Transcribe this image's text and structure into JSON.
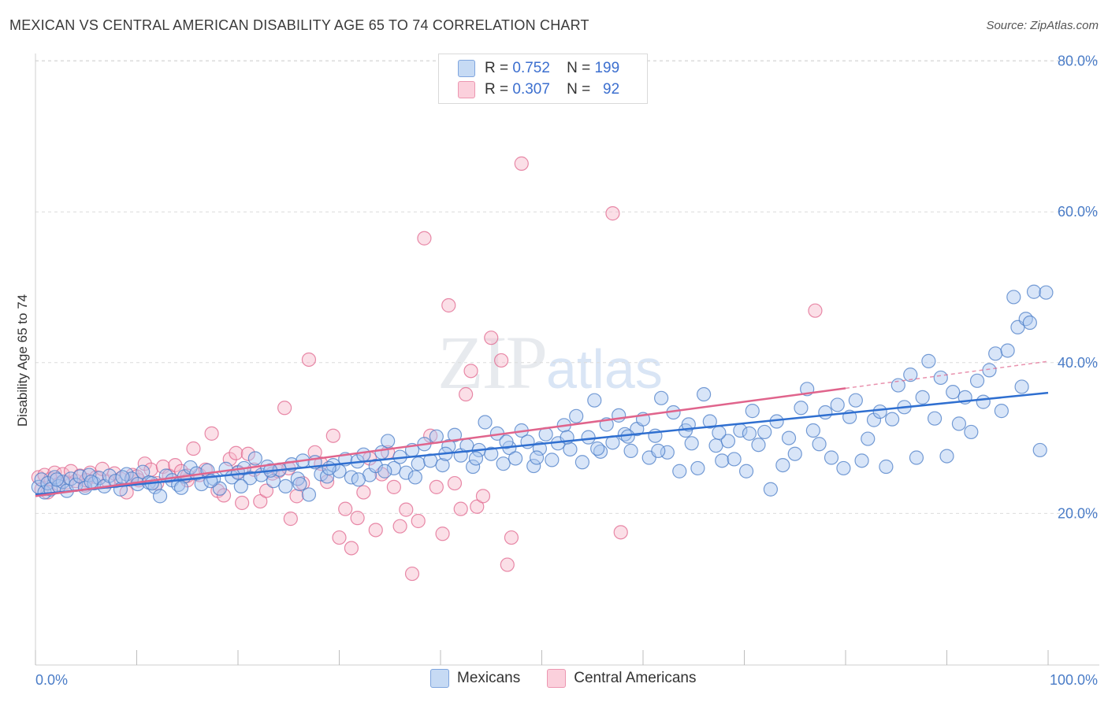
{
  "title": "MEXICAN VS CENTRAL AMERICAN DISABILITY AGE 65 TO 74 CORRELATION CHART",
  "source": "Source: ZipAtlas.com",
  "watermark": {
    "zip": "ZIP",
    "atlas": "atlas"
  },
  "legend": {
    "rows": [
      {
        "r_label": "R =",
        "r_value": "0.752",
        "n_label": "N =",
        "n_value": "199",
        "color": "#a9c6ef"
      },
      {
        "r_label": "R =",
        "r_value": "0.307",
        "n_label": "N =",
        "n_value": "92",
        "color": "#f6b8ca"
      }
    ]
  },
  "chart_data": {
    "type": "scatter",
    "title": "MEXICAN VS CENTRAL AMERICAN DISABILITY AGE 65 TO 74 CORRELATION CHART",
    "xlabel": "",
    "ylabel": "Disability Age 65 to 74",
    "xlim": [
      0,
      100
    ],
    "ylim": [
      0,
      82
    ],
    "x_tick_labels": [
      "0.0%",
      "100.0%"
    ],
    "y_ticks": [
      20,
      40,
      60,
      80
    ],
    "y_tick_labels": [
      "20.0%",
      "40.0%",
      "60.0%",
      "80.0%"
    ],
    "grid": "horizontal dashed",
    "legend_position": "top-center and bottom",
    "series": [
      {
        "name": "Mexicans",
        "color": "#4a7cc7",
        "fill": "#a9c6ef",
        "trend": {
          "x": [
            0,
            100
          ],
          "y": [
            22.5,
            36.0
          ]
        },
        "points": [
          [
            0.3,
            23.5
          ],
          [
            0.6,
            24.5
          ],
          [
            0.9,
            22.8
          ],
          [
            1.2,
            24.0
          ],
          [
            1.5,
            23.2
          ],
          [
            1.9,
            24.8
          ],
          [
            2.3,
            23.6
          ],
          [
            2.7,
            24.2
          ],
          [
            3.1,
            23.0
          ],
          [
            3.5,
            24.6
          ],
          [
            4.0,
            23.8
          ],
          [
            4.4,
            24.9
          ],
          [
            4.9,
            23.4
          ],
          [
            5.3,
            25.1
          ],
          [
            5.8,
            24.0
          ],
          [
            6.3,
            24.7
          ],
          [
            6.8,
            23.6
          ],
          [
            7.3,
            25.0
          ],
          [
            7.9,
            24.3
          ],
          [
            8.4,
            23.2
          ],
          [
            9.0,
            25.2
          ],
          [
            9.5,
            24.6
          ],
          [
            10.1,
            23.9
          ],
          [
            10.6,
            25.5
          ],
          [
            11.2,
            24.1
          ],
          [
            11.8,
            23.5
          ],
          [
            12.3,
            22.3
          ],
          [
            12.9,
            25.0
          ],
          [
            13.5,
            24.4
          ],
          [
            14.1,
            23.8
          ],
          [
            14.7,
            24.9
          ],
          [
            15.3,
            26.1
          ],
          [
            15.9,
            25.3
          ],
          [
            16.4,
            23.9
          ],
          [
            17.0,
            25.7
          ],
          [
            17.6,
            24.6
          ],
          [
            18.2,
            23.3
          ],
          [
            18.8,
            25.9
          ],
          [
            19.4,
            24.8
          ],
          [
            20.0,
            25.4
          ],
          [
            20.6,
            26.0
          ],
          [
            21.2,
            24.7
          ],
          [
            21.7,
            27.3
          ],
          [
            22.3,
            25.1
          ],
          [
            22.9,
            26.2
          ],
          [
            23.5,
            24.3
          ],
          [
            24.1,
            25.8
          ],
          [
            24.7,
            23.6
          ],
          [
            25.3,
            26.5
          ],
          [
            25.9,
            24.6
          ],
          [
            26.4,
            27.0
          ],
          [
            27.0,
            22.5
          ],
          [
            27.6,
            26.8
          ],
          [
            28.2,
            25.2
          ],
          [
            28.8,
            24.9
          ],
          [
            29.4,
            26.4
          ],
          [
            30.0,
            25.6
          ],
          [
            30.6,
            27.2
          ],
          [
            31.2,
            24.8
          ],
          [
            31.8,
            26.9
          ],
          [
            32.4,
            27.8
          ],
          [
            33.0,
            25.1
          ],
          [
            33.6,
            26.3
          ],
          [
            34.2,
            28.1
          ],
          [
            34.8,
            29.6
          ],
          [
            35.4,
            26.0
          ],
          [
            36.0,
            27.5
          ],
          [
            36.6,
            25.4
          ],
          [
            37.2,
            28.4
          ],
          [
            37.8,
            26.6
          ],
          [
            38.4,
            29.2
          ],
          [
            39.0,
            27.0
          ],
          [
            39.6,
            30.2
          ],
          [
            40.2,
            26.4
          ],
          [
            40.8,
            28.9
          ],
          [
            41.4,
            30.4
          ],
          [
            42.0,
            27.7
          ],
          [
            42.6,
            29.0
          ],
          [
            43.2,
            26.2
          ],
          [
            43.8,
            28.4
          ],
          [
            44.4,
            32.1
          ],
          [
            45.0,
            27.9
          ],
          [
            45.6,
            30.6
          ],
          [
            46.2,
            26.6
          ],
          [
            46.8,
            28.7
          ],
          [
            47.4,
            27.3
          ],
          [
            48.0,
            31.0
          ],
          [
            48.6,
            29.5
          ],
          [
            49.2,
            26.3
          ],
          [
            49.8,
            28.6
          ],
          [
            50.4,
            30.5
          ],
          [
            51.0,
            27.1
          ],
          [
            51.6,
            29.3
          ],
          [
            52.2,
            31.7
          ],
          [
            52.8,
            28.5
          ],
          [
            53.4,
            32.9
          ],
          [
            54.0,
            26.8
          ],
          [
            54.6,
            30.1
          ],
          [
            55.2,
            35.0
          ],
          [
            55.8,
            28.2
          ],
          [
            56.4,
            31.8
          ],
          [
            57.0,
            29.4
          ],
          [
            57.6,
            33.0
          ],
          [
            58.2,
            30.5
          ],
          [
            58.8,
            28.3
          ],
          [
            59.4,
            31.2
          ],
          [
            60.0,
            32.5
          ],
          [
            60.6,
            27.4
          ],
          [
            61.2,
            30.3
          ],
          [
            61.8,
            35.3
          ],
          [
            62.4,
            28.1
          ],
          [
            63.0,
            33.4
          ],
          [
            63.6,
            25.6
          ],
          [
            64.2,
            31.0
          ],
          [
            64.8,
            29.3
          ],
          [
            65.4,
            26.0
          ],
          [
            66.0,
            35.8
          ],
          [
            66.6,
            32.2
          ],
          [
            67.2,
            29.0
          ],
          [
            67.8,
            27.0
          ],
          [
            68.4,
            29.6
          ],
          [
            69.0,
            27.2
          ],
          [
            69.6,
            31.0
          ],
          [
            70.2,
            25.6
          ],
          [
            70.8,
            33.6
          ],
          [
            71.4,
            29.1
          ],
          [
            72.0,
            30.8
          ],
          [
            72.6,
            23.2
          ],
          [
            73.2,
            32.2
          ],
          [
            73.8,
            26.4
          ],
          [
            74.4,
            30.0
          ],
          [
            75.0,
            27.9
          ],
          [
            75.6,
            34.0
          ],
          [
            76.2,
            36.5
          ],
          [
            76.8,
            31.0
          ],
          [
            77.4,
            29.2
          ],
          [
            78.0,
            33.4
          ],
          [
            78.6,
            27.4
          ],
          [
            79.2,
            34.4
          ],
          [
            79.8,
            26.0
          ],
          [
            80.4,
            32.8
          ],
          [
            81.0,
            35.0
          ],
          [
            81.6,
            27.0
          ],
          [
            82.2,
            29.9
          ],
          [
            82.8,
            32.4
          ],
          [
            83.4,
            33.5
          ],
          [
            84.0,
            26.2
          ],
          [
            84.6,
            32.5
          ],
          [
            85.2,
            37.0
          ],
          [
            85.8,
            34.1
          ],
          [
            86.4,
            38.4
          ],
          [
            87.0,
            27.4
          ],
          [
            87.6,
            35.4
          ],
          [
            88.2,
            40.2
          ],
          [
            88.8,
            32.6
          ],
          [
            89.4,
            38.0
          ],
          [
            90.0,
            27.6
          ],
          [
            90.6,
            36.1
          ],
          [
            91.2,
            31.9
          ],
          [
            91.8,
            35.4
          ],
          [
            92.4,
            30.8
          ],
          [
            93.0,
            37.6
          ],
          [
            93.6,
            34.8
          ],
          [
            94.2,
            39.0
          ],
          [
            94.8,
            41.2
          ],
          [
            95.4,
            33.6
          ],
          [
            96.0,
            41.6
          ],
          [
            96.6,
            48.7
          ],
          [
            97.0,
            44.7
          ],
          [
            97.4,
            36.8
          ],
          [
            97.8,
            45.8
          ],
          [
            98.2,
            45.3
          ],
          [
            98.6,
            49.4
          ],
          [
            99.2,
            28.4
          ],
          [
            99.8,
            49.3
          ],
          [
            2.1,
            24.5
          ],
          [
            5.5,
            24.2
          ],
          [
            8.6,
            24.8
          ],
          [
            11.5,
            24.0
          ],
          [
            14.4,
            23.4
          ],
          [
            17.3,
            24.3
          ],
          [
            20.3,
            23.6
          ],
          [
            23.2,
            25.7
          ],
          [
            26.1,
            23.9
          ],
          [
            29.0,
            26.0
          ],
          [
            31.9,
            24.5
          ],
          [
            34.5,
            25.6
          ],
          [
            37.5,
            24.8
          ],
          [
            40.5,
            27.9
          ],
          [
            43.5,
            27.3
          ],
          [
            46.5,
            29.5
          ],
          [
            49.5,
            27.4
          ],
          [
            52.5,
            30.1
          ],
          [
            55.5,
            28.6
          ],
          [
            58.5,
            30.2
          ],
          [
            61.5,
            28.3
          ],
          [
            64.5,
            31.8
          ],
          [
            67.5,
            30.7
          ],
          [
            70.5,
            30.6
          ]
        ]
      },
      {
        "name": "Central Americans",
        "color": "#e0648c",
        "fill": "#f6b8ca",
        "trend": {
          "x": [
            0,
            80
          ],
          "y": [
            22.3,
            36.6
          ]
        },
        "points": [
          [
            0.3,
            24.8
          ],
          [
            0.6,
            23.2
          ],
          [
            0.9,
            25.1
          ],
          [
            1.2,
            22.8
          ],
          [
            1.5,
            24.6
          ],
          [
            1.9,
            25.4
          ],
          [
            2.3,
            23.9
          ],
          [
            2.7,
            25.2
          ],
          [
            3.1,
            24.1
          ],
          [
            3.5,
            25.6
          ],
          [
            4.0,
            24.3
          ],
          [
            4.4,
            25.0
          ],
          [
            4.9,
            23.7
          ],
          [
            5.4,
            25.4
          ],
          [
            6.0,
            24.8
          ],
          [
            6.6,
            25.9
          ],
          [
            7.2,
            24.2
          ],
          [
            7.8,
            25.3
          ],
          [
            8.4,
            24.6
          ],
          [
            9.0,
            22.8
          ],
          [
            9.6,
            25.1
          ],
          [
            10.2,
            24.4
          ],
          [
            10.8,
            26.6
          ],
          [
            11.4,
            25.8
          ],
          [
            12.0,
            24.0
          ],
          [
            12.6,
            26.2
          ],
          [
            13.2,
            25.0
          ],
          [
            13.8,
            26.4
          ],
          [
            14.4,
            25.6
          ],
          [
            15.0,
            24.4
          ],
          [
            15.6,
            28.6
          ],
          [
            16.2,
            25.1
          ],
          [
            16.8,
            25.8
          ],
          [
            17.4,
            30.6
          ],
          [
            18.0,
            23.0
          ],
          [
            18.6,
            22.4
          ],
          [
            19.2,
            27.2
          ],
          [
            19.8,
            28.0
          ],
          [
            20.4,
            21.4
          ],
          [
            21.0,
            27.9
          ],
          [
            21.6,
            25.8
          ],
          [
            22.2,
            21.6
          ],
          [
            22.8,
            23.0
          ],
          [
            23.4,
            25.3
          ],
          [
            24.0,
            25.6
          ],
          [
            24.6,
            34.0
          ],
          [
            25.2,
            19.3
          ],
          [
            25.8,
            22.3
          ],
          [
            26.4,
            24.0
          ],
          [
            27.0,
            40.4
          ],
          [
            27.6,
            28.1
          ],
          [
            28.2,
            26.6
          ],
          [
            28.8,
            24.2
          ],
          [
            29.4,
            30.3
          ],
          [
            30.0,
            16.8
          ],
          [
            30.6,
            20.6
          ],
          [
            31.2,
            15.4
          ],
          [
            31.8,
            19.4
          ],
          [
            32.4,
            22.8
          ],
          [
            33.0,
            27.3
          ],
          [
            33.6,
            17.8
          ],
          [
            34.2,
            25.2
          ],
          [
            34.8,
            28.1
          ],
          [
            35.4,
            23.5
          ],
          [
            36.0,
            18.3
          ],
          [
            36.6,
            20.5
          ],
          [
            37.2,
            12.0
          ],
          [
            37.8,
            19.0
          ],
          [
            38.4,
            56.5
          ],
          [
            39.0,
            30.3
          ],
          [
            39.6,
            23.5
          ],
          [
            40.2,
            17.3
          ],
          [
            40.8,
            47.6
          ],
          [
            41.4,
            24.0
          ],
          [
            42.0,
            20.6
          ],
          [
            42.5,
            35.8
          ],
          [
            43.0,
            38.9
          ],
          [
            43.6,
            20.9
          ],
          [
            44.2,
            22.3
          ],
          [
            45.0,
            43.3
          ],
          [
            46.0,
            40.3
          ],
          [
            46.6,
            13.2
          ],
          [
            47.0,
            16.8
          ],
          [
            48.0,
            66.4
          ],
          [
            57.0,
            59.8
          ],
          [
            57.8,
            17.5
          ],
          [
            77.0,
            46.9
          ],
          [
            5.0,
            24.4
          ],
          [
            10.0,
            24.9
          ],
          [
            15.0,
            25.0
          ],
          [
            20.0,
            25.5
          ],
          [
            25.0,
            26.0
          ]
        ]
      }
    ]
  }
}
